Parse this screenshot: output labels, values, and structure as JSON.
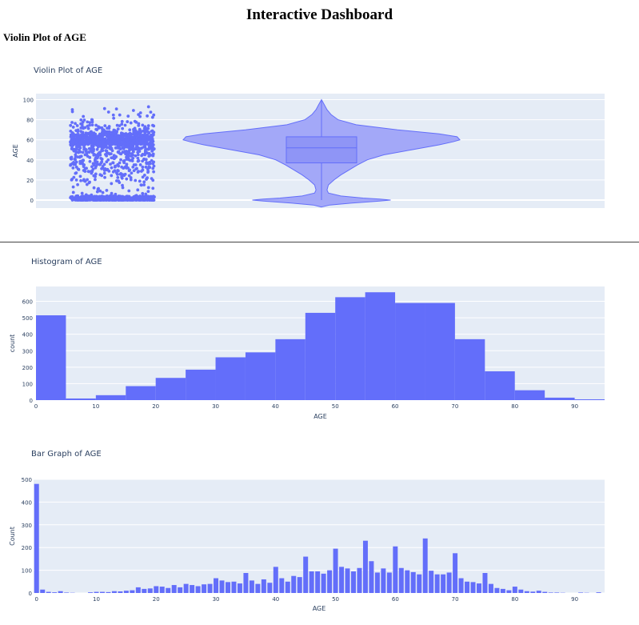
{
  "page": {
    "title": "Interactive Dashboard",
    "section_title": "Violin Plot of AGE"
  },
  "theme": {
    "plot_bg": "#e5ecf6",
    "accent": "#636efa",
    "violin_fill": "#a3a8f8",
    "text": "#2a3f5f",
    "grid": "#ffffff"
  },
  "chart_data": [
    {
      "id": "violin",
      "type": "violin",
      "title": "Violin Plot of AGE",
      "xlabel": "",
      "ylabel": "AGE",
      "ylim": [
        -8,
        106
      ],
      "yticks": [
        0,
        20,
        40,
        60,
        80,
        100
      ],
      "grid": true,
      "points": "all",
      "box": {
        "min": 0,
        "q1": 37,
        "median": 52,
        "q3": 63,
        "max": 100
      },
      "density": [
        [
          -7,
          0.0
        ],
        [
          -5,
          0.06
        ],
        [
          -3,
          0.22
        ],
        [
          -1,
          0.42
        ],
        [
          0,
          0.5
        ],
        [
          1,
          0.42
        ],
        [
          2,
          0.3
        ],
        [
          4,
          0.14
        ],
        [
          7,
          0.05
        ],
        [
          10,
          0.04
        ],
        [
          15,
          0.05
        ],
        [
          20,
          0.09
        ],
        [
          25,
          0.14
        ],
        [
          30,
          0.2
        ],
        [
          35,
          0.26
        ],
        [
          40,
          0.33
        ],
        [
          45,
          0.45
        ],
        [
          50,
          0.65
        ],
        [
          55,
          0.85
        ],
        [
          58,
          0.95
        ],
        [
          60,
          1.0
        ],
        [
          63,
          0.98
        ],
        [
          66,
          0.85
        ],
        [
          70,
          0.55
        ],
        [
          75,
          0.25
        ],
        [
          80,
          0.12
        ],
        [
          85,
          0.07
        ],
        [
          90,
          0.04
        ],
        [
          95,
          0.02
        ],
        [
          100,
          0.0
        ]
      ]
    },
    {
      "id": "histogram",
      "type": "bar",
      "title": "Histogram of AGE",
      "xlabel": "AGE",
      "ylabel": "count",
      "xlim": [
        0,
        95
      ],
      "ylim": [
        0,
        690
      ],
      "xticks": [
        0,
        10,
        20,
        30,
        40,
        50,
        60,
        70,
        80,
        90
      ],
      "yticks": [
        0,
        100,
        200,
        300,
        400,
        500,
        600
      ],
      "grid": true,
      "bin_size": 5,
      "bin_starts": [
        0,
        5,
        10,
        15,
        20,
        25,
        30,
        35,
        40,
        45,
        50,
        55,
        60,
        65,
        70,
        75,
        80,
        85,
        90
      ],
      "values": [
        515,
        10,
        30,
        85,
        135,
        185,
        260,
        290,
        370,
        530,
        625,
        655,
        590,
        590,
        370,
        175,
        60,
        15,
        5
      ]
    },
    {
      "id": "bargraph",
      "type": "bar",
      "title": "Bar Graph of AGE",
      "xlabel": "AGE",
      "ylabel": "Count",
      "xlim": [
        -0.5,
        95
      ],
      "ylim": [
        0,
        500
      ],
      "xticks": [
        0,
        10,
        20,
        30,
        40,
        50,
        60,
        70,
        80,
        90
      ],
      "yticks": [
        0,
        100,
        200,
        300,
        400,
        500
      ],
      "grid": true,
      "categories": [
        0,
        1,
        2,
        3,
        4,
        5,
        6,
        7,
        8,
        9,
        10,
        11,
        12,
        13,
        14,
        15,
        16,
        17,
        18,
        19,
        20,
        21,
        22,
        23,
        24,
        25,
        26,
        27,
        28,
        29,
        30,
        31,
        32,
        33,
        34,
        35,
        36,
        37,
        38,
        39,
        40,
        41,
        42,
        43,
        44,
        45,
        46,
        47,
        48,
        49,
        50,
        51,
        52,
        53,
        54,
        55,
        56,
        57,
        58,
        59,
        60,
        61,
        62,
        63,
        64,
        65,
        66,
        67,
        68,
        69,
        70,
        71,
        72,
        73,
        74,
        75,
        76,
        77,
        78,
        79,
        80,
        81,
        82,
        83,
        84,
        85,
        86,
        87,
        88,
        89,
        90,
        91,
        92,
        93,
        94
      ],
      "values": [
        480,
        15,
        5,
        3,
        8,
        2,
        1,
        0,
        0,
        3,
        5,
        5,
        4,
        8,
        7,
        10,
        12,
        25,
        18,
        20,
        30,
        28,
        22,
        35,
        25,
        40,
        35,
        30,
        38,
        40,
        65,
        55,
        48,
        50,
        42,
        88,
        55,
        40,
        60,
        45,
        115,
        65,
        50,
        75,
        70,
        160,
        95,
        95,
        85,
        100,
        195,
        115,
        108,
        95,
        110,
        230,
        140,
        90,
        108,
        90,
        205,
        110,
        100,
        92,
        82,
        240,
        98,
        82,
        82,
        90,
        175,
        65,
        50,
        48,
        42,
        88,
        40,
        22,
        18,
        12,
        28,
        15,
        8,
        6,
        10,
        5,
        2,
        2,
        1,
        0,
        0,
        2,
        1,
        0,
        3
      ]
    }
  ]
}
